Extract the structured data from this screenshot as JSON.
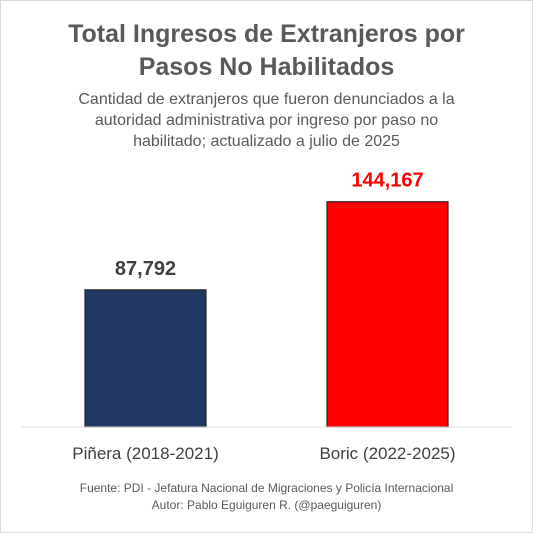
{
  "chart_data": {
    "type": "bar",
    "title_lines": [
      "Total Ingresos de Extranjeros por",
      "Pasos No Habilitados"
    ],
    "subtitle_lines": [
      "Cantidad de extranjeros que fueron denunciados a la",
      "autoridad administrativa por ingreso por paso no",
      "habilitado; actualizado a julio de 2025"
    ],
    "categories": [
      "Piñera (2018-2021)",
      "Boric (2022-2025)"
    ],
    "values": [
      87792,
      144167
    ],
    "value_labels": [
      "87,792",
      "144,167"
    ],
    "bar_colors": [
      "#203864",
      "#ff0000"
    ],
    "label_colors": [
      "#404040",
      "#ff0000"
    ],
    "ylim": [
      0,
      160000
    ],
    "grid": false,
    "legend": "none"
  },
  "footer": {
    "source": "Fuente: PDI - Jefatura Nacional de Migraciones y Policía Internacional",
    "author": "Autor: Pablo Eguiguren R. (@paeguiguren)"
  }
}
